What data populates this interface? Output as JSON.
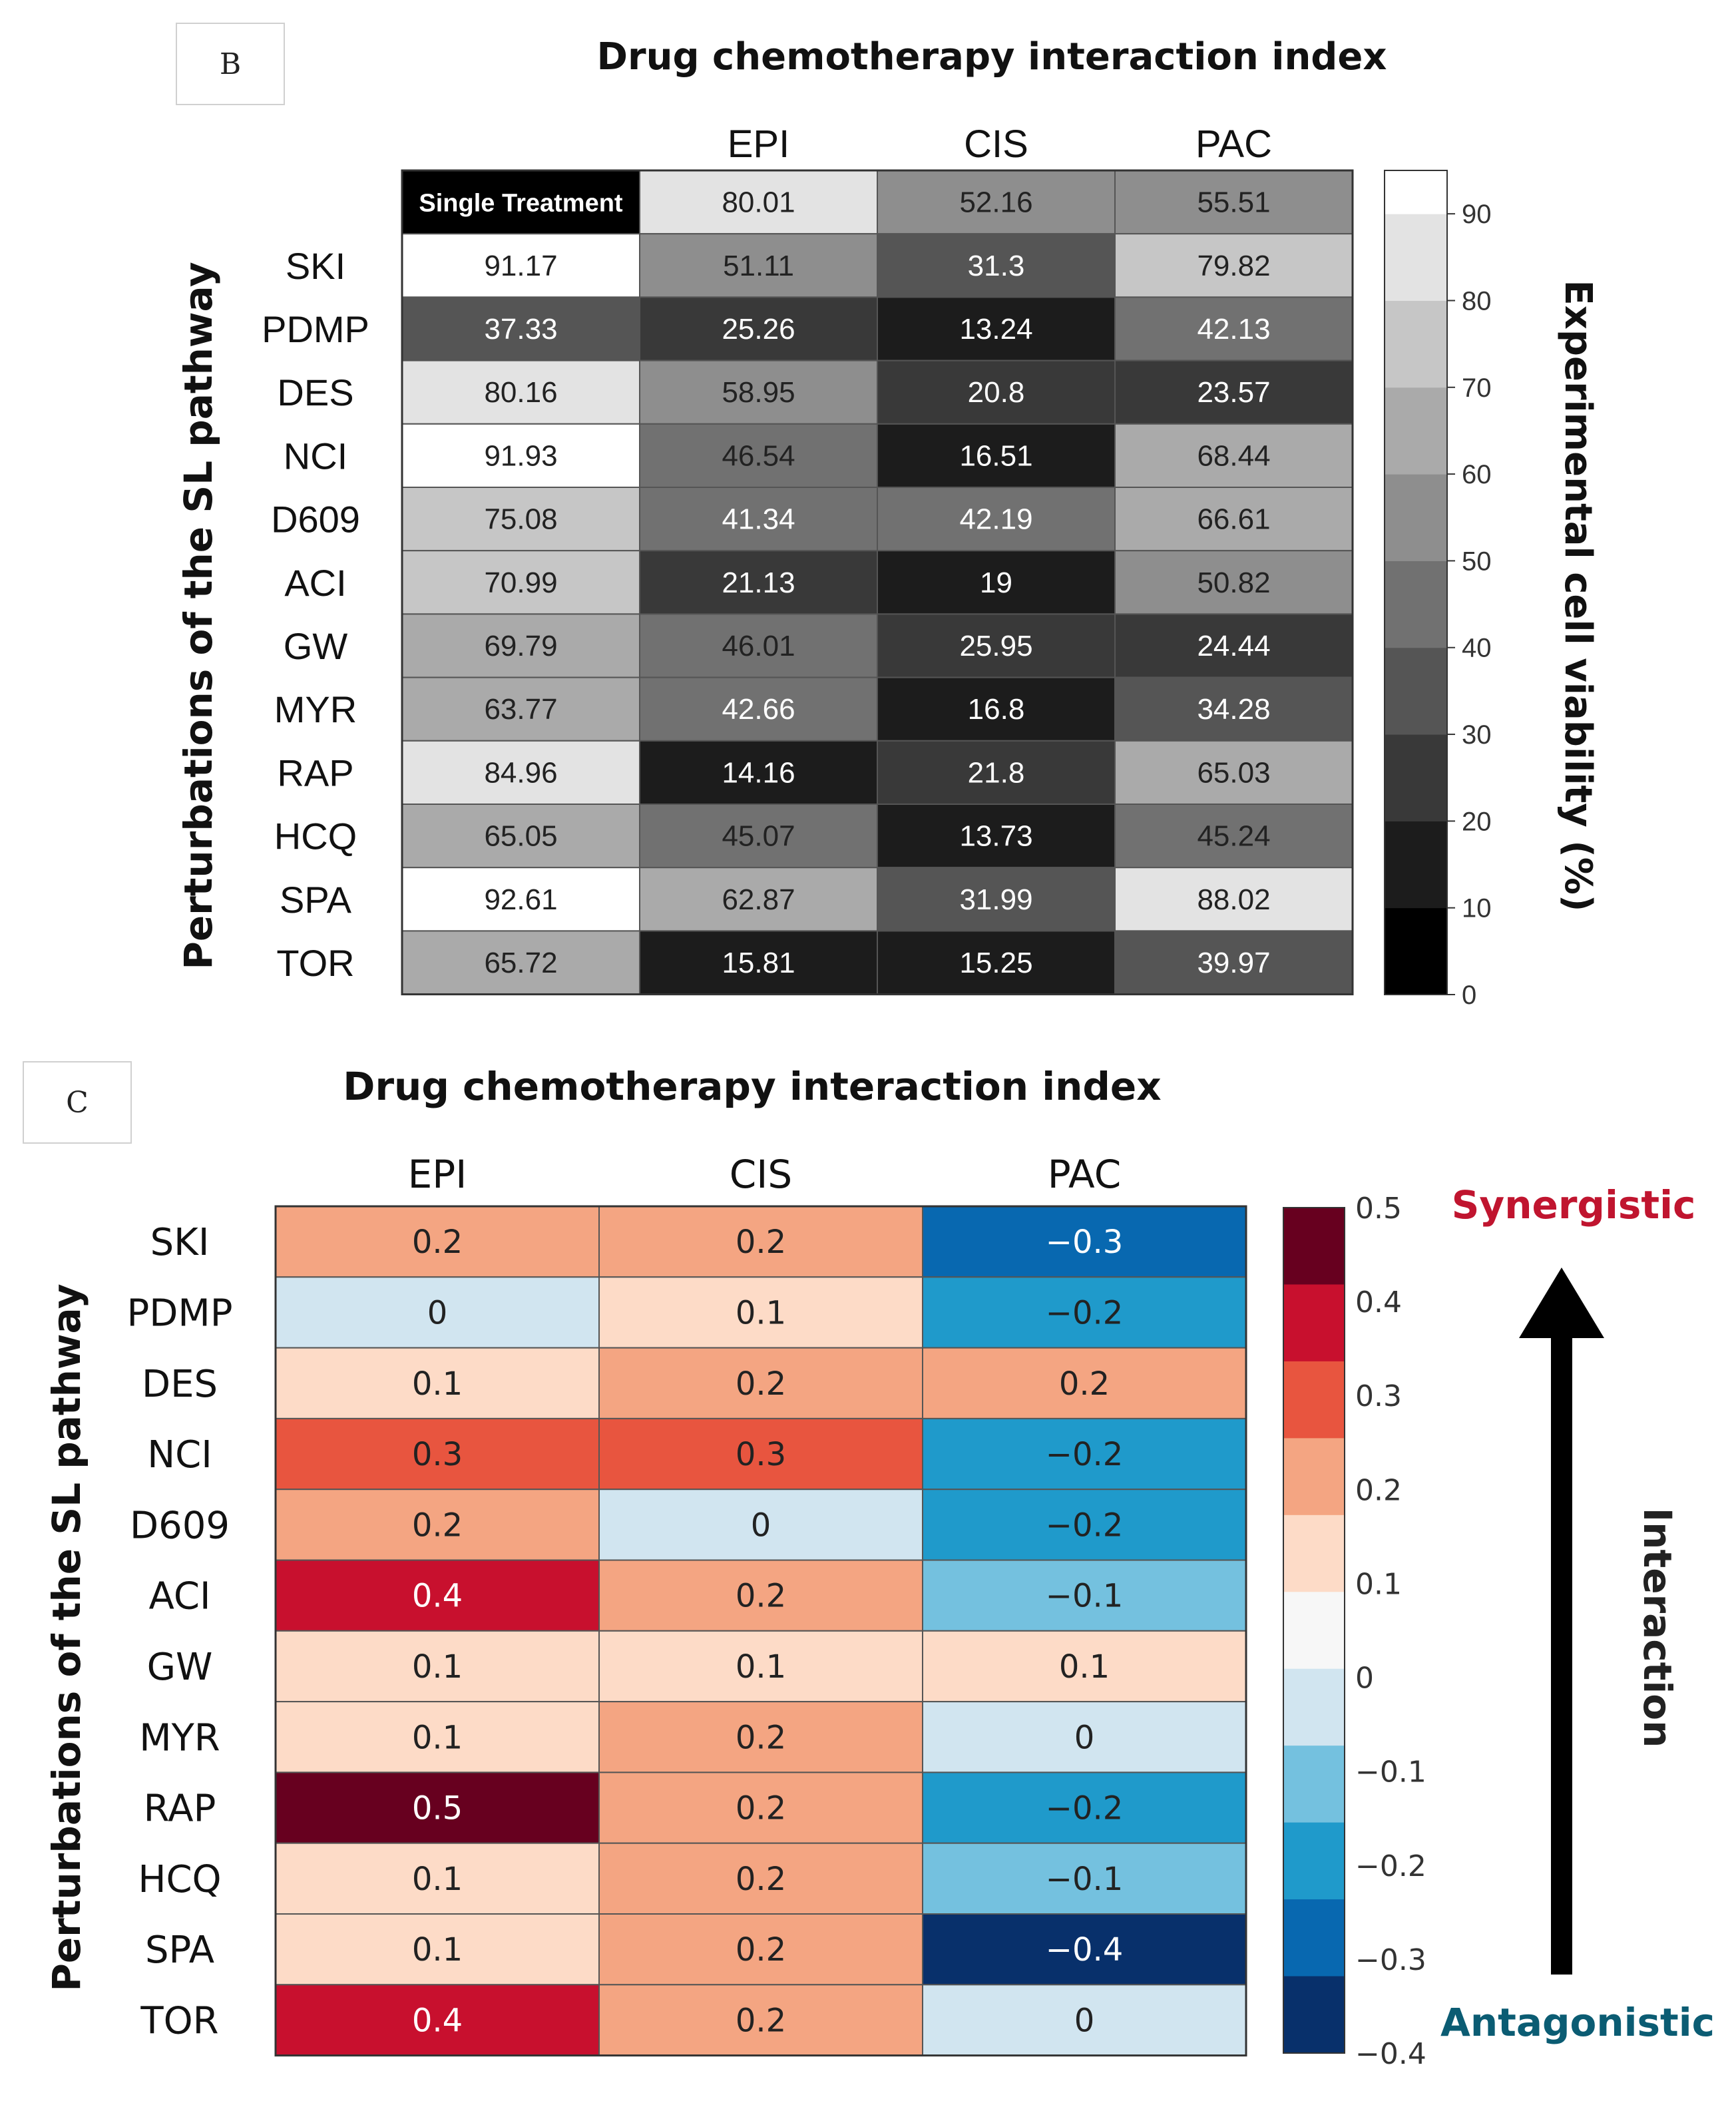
{
  "panels": {
    "b_label": "B",
    "c_label": "C"
  },
  "chart_data": [
    {
      "type": "heatmap",
      "title": "Drug chemotherapy interaction index",
      "ylabel": "Perturbations of the SL pathway",
      "colorbar_label": "Experimental cell viability  (%)",
      "columns": [
        "EPI",
        "CIS",
        "PAC"
      ],
      "rows": [
        "SKI",
        "PDMP",
        "DES",
        "NCI",
        "D609",
        "ACI",
        "GW",
        "MYR",
        "RAP",
        "HCQ",
        "SPA",
        "TOR"
      ],
      "single_treatment_label": "Single Treatment",
      "single_treatment_row": [
        "80.01",
        "52.16",
        "55.51"
      ],
      "single_treatment_values": [
        "91.17",
        "37.33",
        "80.16",
        "91.93",
        "75.08",
        "70.99",
        "69.79",
        "63.77",
        "84.96",
        "65.05",
        "92.61",
        "65.72"
      ],
      "values": [
        [
          "51.11",
          "31.3",
          "79.82"
        ],
        [
          "25.26",
          "13.24",
          "42.13"
        ],
        [
          "58.95",
          "20.8",
          "23.57"
        ],
        [
          "46.54",
          "16.51",
          "68.44"
        ],
        [
          "41.34",
          "42.19",
          "66.61"
        ],
        [
          "21.13",
          "19",
          "50.82"
        ],
        [
          "46.01",
          "25.95",
          "24.44"
        ],
        [
          "42.66",
          "16.8",
          "34.28"
        ],
        [
          "14.16",
          "21.8",
          "65.03"
        ],
        [
          "45.07",
          "13.73",
          "45.24"
        ],
        [
          "62.87",
          "31.99",
          "88.02"
        ],
        [
          "15.81",
          "15.25",
          "39.97"
        ]
      ],
      "colorbar_range": [
        0,
        95
      ],
      "colorbar_ticks": [
        "0",
        "10",
        "20",
        "30",
        "40",
        "50",
        "60",
        "70",
        "80",
        "90"
      ],
      "colormap": "grayscale"
    },
    {
      "type": "heatmap",
      "title": "Drug chemotherapy interaction index",
      "ylabel": "Perturbations of the SL pathway",
      "columns": [
        "EPI",
        "CIS",
        "PAC"
      ],
      "rows": [
        "SKI",
        "PDMP",
        "DES",
        "NCI",
        "D609",
        "ACI",
        "GW",
        "MYR",
        "RAP",
        "HCQ",
        "SPA",
        "TOR"
      ],
      "values": [
        [
          "0.2",
          "0.2",
          "−0.3"
        ],
        [
          "0",
          "0.1",
          "−0.2"
        ],
        [
          "0.1",
          "0.2",
          "0.2"
        ],
        [
          "0.3",
          "0.3",
          "−0.2"
        ],
        [
          "0.2",
          "0",
          "−0.2"
        ],
        [
          "0.4",
          "0.2",
          "−0.1"
        ],
        [
          "0.1",
          "0.1",
          "0.1"
        ],
        [
          "0.1",
          "0.2",
          "0"
        ],
        [
          "0.5",
          "0.2",
          "−0.2"
        ],
        [
          "0.1",
          "0.2",
          "−0.1"
        ],
        [
          "0.1",
          "0.2",
          "−0.4"
        ],
        [
          "0.4",
          "0.2",
          "0"
        ]
      ],
      "colorbar_range": [
        -0.4,
        0.5
      ],
      "colorbar_ticks": [
        "0.5",
        "0.4",
        "0.3",
        "0.2",
        "0.1",
        "0",
        "−0.1",
        "−0.2",
        "−0.3",
        "−0.4"
      ],
      "colorbar_colors": [
        "#67001f",
        "#c8102e",
        "#e8553f",
        "#f4a582",
        "#fddbc7",
        "#f7f7f7",
        "#d1e5f0",
        "#74c1df",
        "#1f9acb",
        "#0868b0",
        "#08306b"
      ],
      "arrow_top_label": "Synergistic",
      "arrow_bottom_label": "Antagonistic",
      "arrow_label": "Interaction",
      "colors": {
        "synergistic": "#c0152f",
        "antagonistic": "#0b5c73"
      }
    }
  ]
}
